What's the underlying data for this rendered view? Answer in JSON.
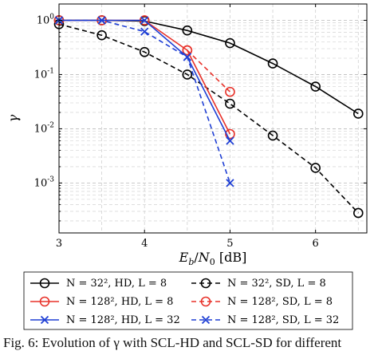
{
  "chart_data": {
    "type": "line",
    "xlabel": "E_b/N_0 [dB]",
    "ylabel": "γ",
    "xlim": [
      3,
      6.6
    ],
    "ylim": [
      0.00012,
      2
    ],
    "yscale": "log",
    "xticks": [
      "3",
      "4",
      "5",
      "6"
    ],
    "yticks": [
      "10^0",
      "10^-1",
      "10^-2",
      "10^-3"
    ],
    "grid": true,
    "legend_position": "bottom, outside",
    "series": [
      {
        "name": "N = 32^2, HD, L = 8",
        "color": "#000000",
        "dash": "solid",
        "marker": "circle",
        "x": [
          3.0,
          3.5,
          4.0,
          4.5,
          5.0,
          5.5,
          6.0,
          6.5
        ],
        "y": [
          1.0,
          1.0,
          0.97,
          0.65,
          0.38,
          0.16,
          0.06,
          0.019
        ]
      },
      {
        "name": "N = 32^2, SD, L = 8",
        "color": "#000000",
        "dash": "dashed",
        "marker": "circle",
        "x": [
          3.0,
          3.5,
          4.0,
          4.5,
          5.0,
          5.5,
          6.0,
          6.5
        ],
        "y": [
          0.85,
          0.53,
          0.26,
          0.1,
          0.029,
          0.0075,
          0.0019,
          0.00028
        ]
      },
      {
        "name": "N = 128^2, HD, L = 8",
        "color": "#e8322a",
        "dash": "solid",
        "marker": "circle",
        "x": [
          3.0,
          3.5,
          4.0,
          4.5,
          5.0
        ],
        "y": [
          1.0,
          1.0,
          1.0,
          0.28,
          0.008
        ]
      },
      {
        "name": "N = 128^2, SD, L = 8",
        "color": "#e8322a",
        "dash": "dashed",
        "marker": "circle",
        "x": [
          4.5,
          5.0
        ],
        "y": [
          0.28,
          0.048
        ]
      },
      {
        "name": "N = 128^2, HD, L = 32",
        "color": "#1f3fd4",
        "dash": "solid",
        "marker": "x",
        "x": [
          3.0,
          3.5,
          4.0,
          4.5,
          5.0
        ],
        "y": [
          1.0,
          1.0,
          1.0,
          0.21,
          0.006
        ]
      },
      {
        "name": "N = 128^2, SD, L = 32",
        "color": "#1f3fd4",
        "dash": "dashed",
        "marker": "x",
        "x": [
          3.0,
          3.5,
          4.0,
          4.5,
          5.0
        ],
        "y": [
          1.0,
          1.0,
          0.62,
          0.21,
          0.001
        ]
      }
    ],
    "legend": [
      {
        "series": 0,
        "label": "N = 32², HD, L = 8"
      },
      {
        "series": 1,
        "label": "N = 32², SD, L = 8"
      },
      {
        "series": 2,
        "label": "N = 128², HD, L = 8"
      },
      {
        "series": 3,
        "label": "N = 128², SD, L = 8"
      },
      {
        "series": 4,
        "label": "N = 128², HD, L = 32"
      },
      {
        "series": 5,
        "label": "N = 128², SD, L = 32"
      }
    ]
  },
  "caption": "Fig. 6: Evolution of γ with SCL-HD and SCL-SD for different"
}
